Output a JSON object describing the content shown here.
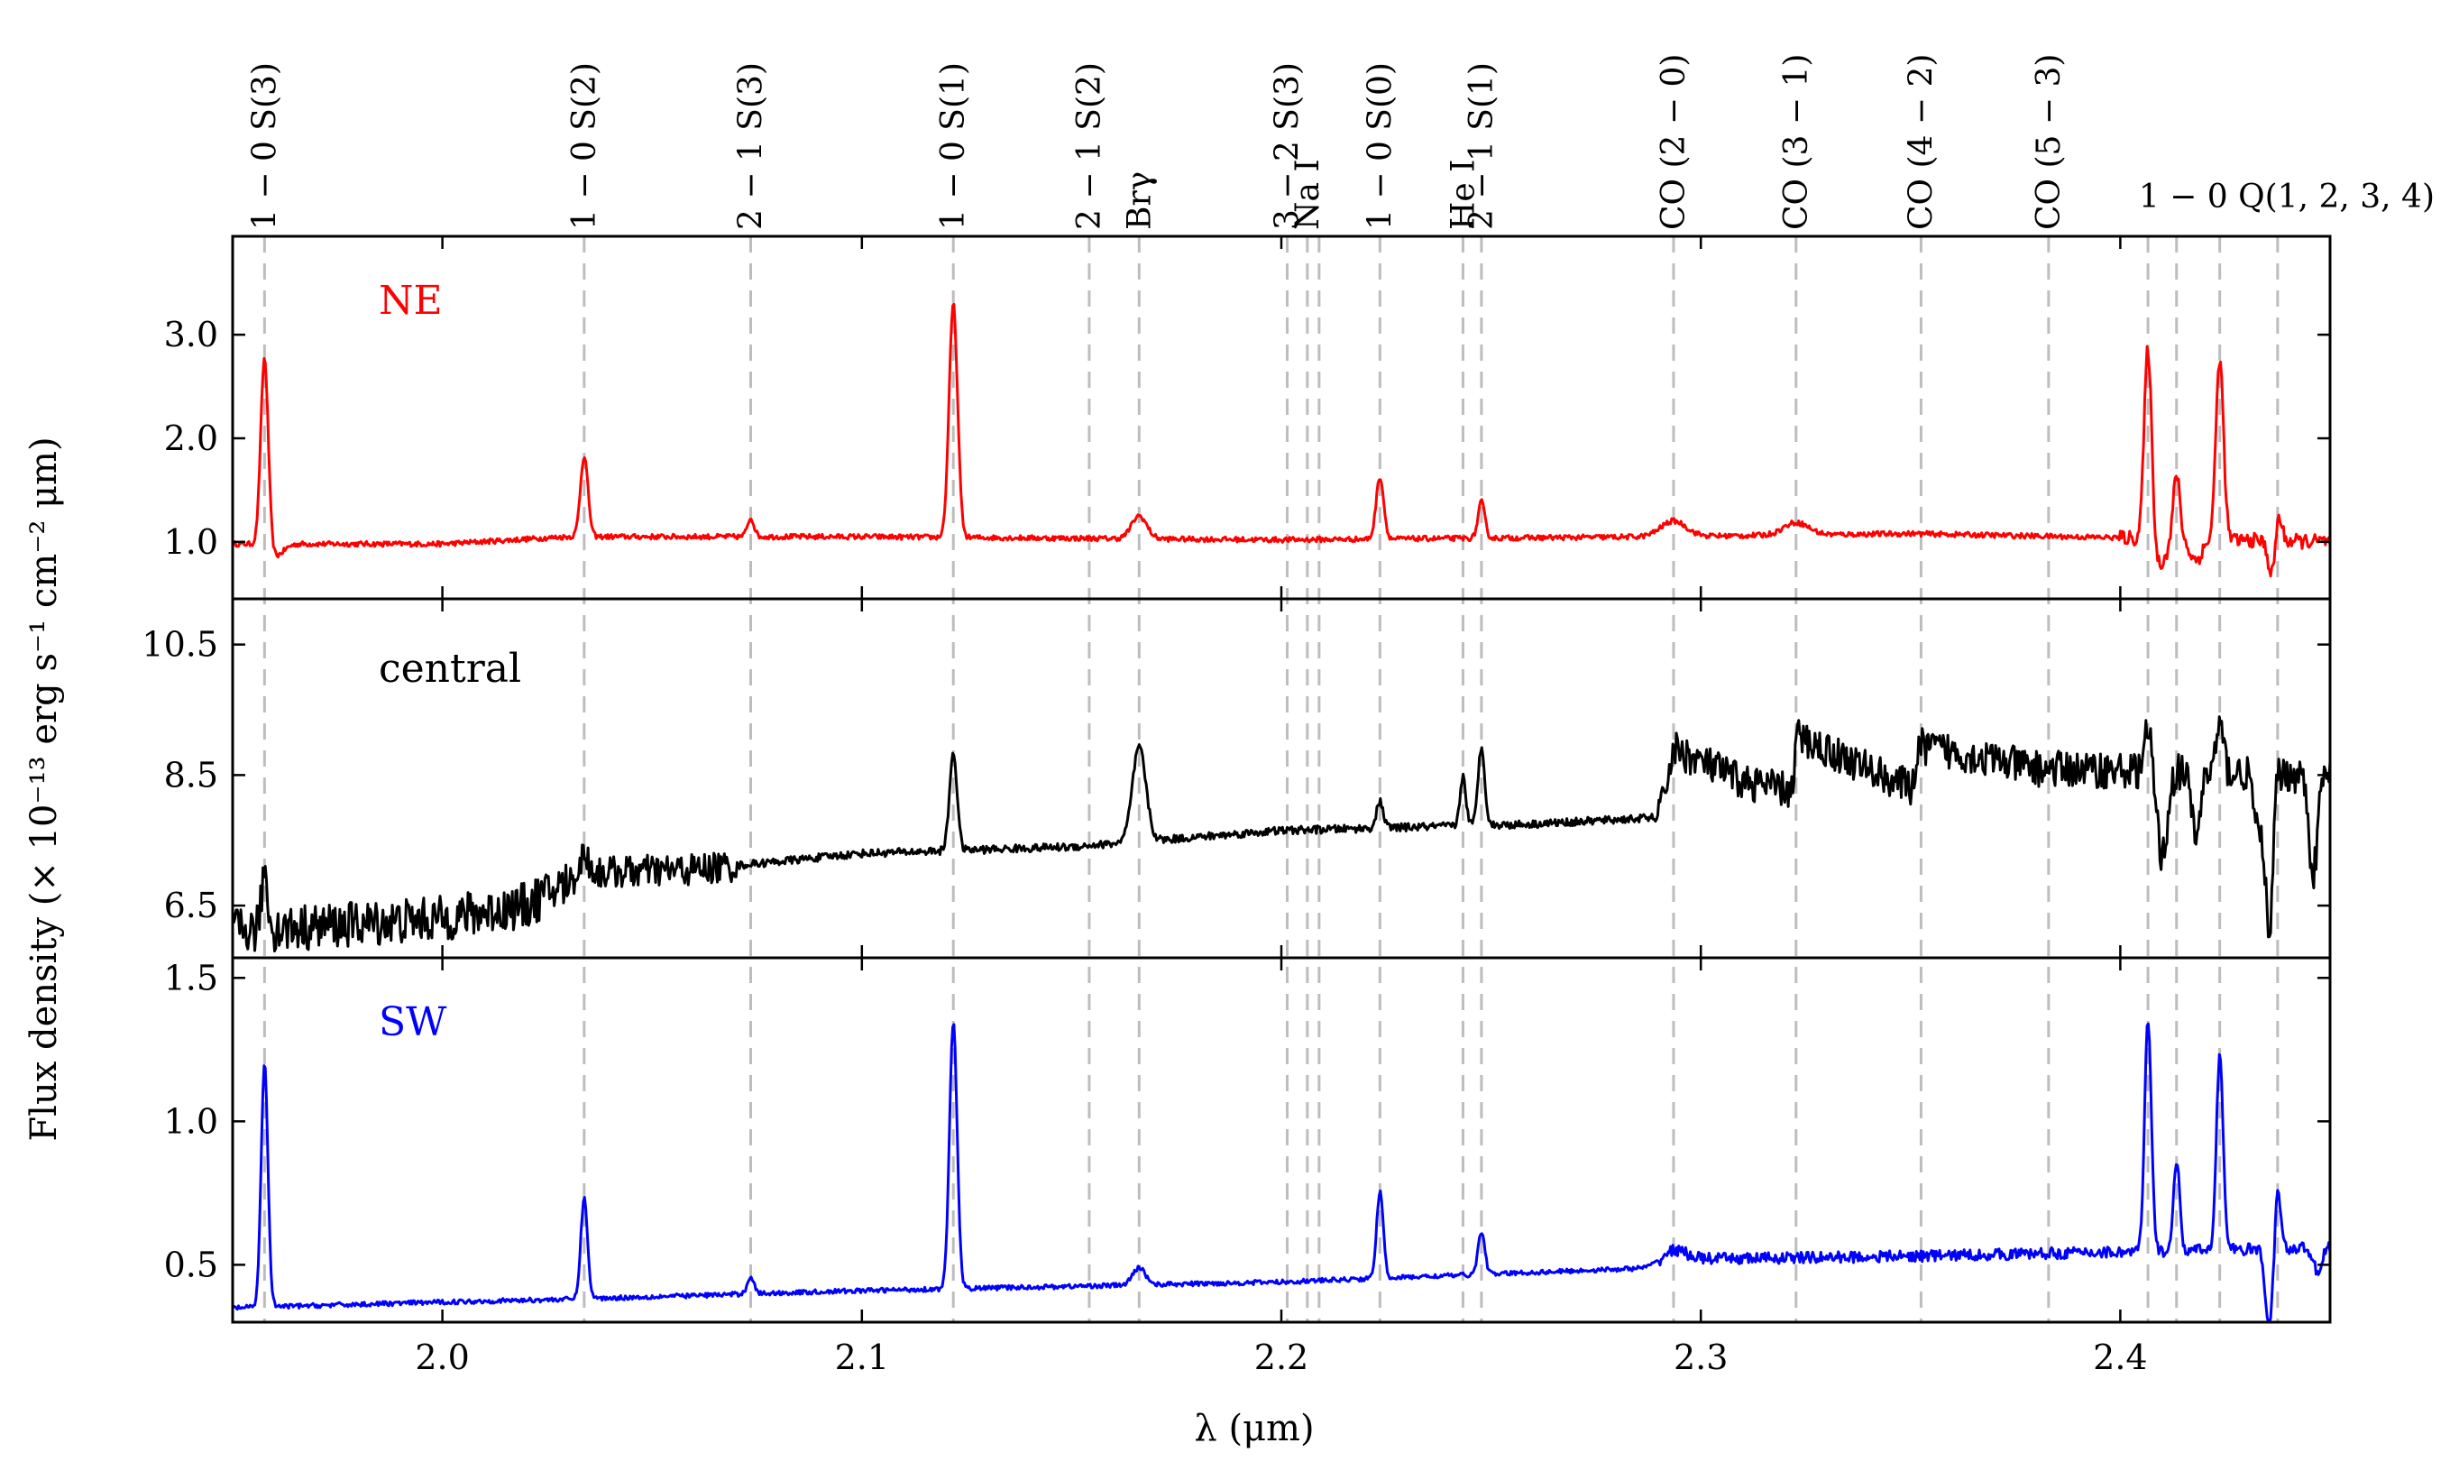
{
  "chart_data": {
    "type": "line",
    "xlabel": "λ (μm)",
    "ylabel": "Flux density (× 10⁻¹³ erg s⁻¹ cm⁻² μm)",
    "xlim": [
      1.95,
      2.45
    ],
    "x_ticks": [
      {
        "value": 2.0,
        "label": "2.0"
      },
      {
        "value": 2.1,
        "label": "2.1"
      },
      {
        "value": 2.2,
        "label": "2.2"
      },
      {
        "value": 2.3,
        "label": "2.3"
      },
      {
        "value": 2.4,
        "label": "2.4"
      }
    ],
    "lines": [
      {
        "wavelength": 1.9576,
        "label": "1 − 0 S(3)",
        "orientation": "vertical"
      },
      {
        "wavelength": 2.0338,
        "label": "1 − 0 S(2)",
        "orientation": "vertical"
      },
      {
        "wavelength": 2.0735,
        "label": "2 − 1 S(3)",
        "orientation": "vertical"
      },
      {
        "wavelength": 2.1218,
        "label": "1 − 0 S(1)",
        "orientation": "vertical"
      },
      {
        "wavelength": 2.1542,
        "label": "2 − 1 S(2)",
        "orientation": "vertical"
      },
      {
        "wavelength": 2.1661,
        "label": "Brγ",
        "orientation": "vertical"
      },
      {
        "wavelength": 2.2014,
        "label": "3 − 2 S(3)",
        "orientation": "vertical"
      },
      {
        "wavelength": 2.2062,
        "label": "Na I",
        "orientation": "vertical"
      },
      {
        "wavelength": 2.209,
        "label": "",
        "orientation": "vertical"
      },
      {
        "wavelength": 2.2235,
        "label": "1 − 0 S(0)",
        "orientation": "vertical"
      },
      {
        "wavelength": 2.2433,
        "label": "He I",
        "orientation": "vertical"
      },
      {
        "wavelength": 2.2477,
        "label": "2 − 1 S(1)",
        "orientation": "vertical"
      },
      {
        "wavelength": 2.2935,
        "label": "CO (2 − 0)",
        "orientation": "vertical"
      },
      {
        "wavelength": 2.3227,
        "label": "CO (3 − 1)",
        "orientation": "vertical"
      },
      {
        "wavelength": 2.3525,
        "label": "CO (4 − 2)",
        "orientation": "vertical"
      },
      {
        "wavelength": 2.3829,
        "label": "CO (5 − 3)",
        "orientation": "vertical"
      },
      {
        "wavelength": 2.4066,
        "label": "1 − 0 Q(1, 2, 3, 4)",
        "orientation": "horizontal"
      },
      {
        "wavelength": 2.4134,
        "label": "",
        "orientation": "vertical"
      },
      {
        "wavelength": 2.4237,
        "label": "",
        "orientation": "vertical"
      },
      {
        "wavelength": 2.4375,
        "label": "",
        "orientation": "vertical"
      }
    ],
    "panels": [
      {
        "name": "NE",
        "color": "#ff0000",
        "ylim": [
          0.45,
          3.95
        ],
        "y_ticks": [
          {
            "value": 1.0,
            "label": "1.0"
          },
          {
            "value": 2.0,
            "label": "2.0"
          },
          {
            "value": 3.0,
            "label": "3.0"
          }
        ],
        "continuum": [
          [
            1.95,
            0.98
          ],
          [
            2.0,
            0.98
          ],
          [
            2.03,
            1.05
          ],
          [
            2.1,
            1.05
          ],
          [
            2.2,
            1.02
          ],
          [
            2.29,
            1.05
          ],
          [
            2.35,
            1.08
          ],
          [
            2.45,
            1.0
          ]
        ],
        "peaks": [
          {
            "x": 1.9576,
            "height": 1.85,
            "width": 0.0009
          },
          {
            "x": 2.0338,
            "height": 0.78,
            "width": 0.0009
          },
          {
            "x": 2.0735,
            "height": 0.18,
            "width": 0.0008
          },
          {
            "x": 2.1218,
            "height": 2.25,
            "width": 0.001
          },
          {
            "x": 2.1661,
            "height": 0.22,
            "width": 0.0018
          },
          {
            "x": 2.2235,
            "height": 0.6,
            "width": 0.0009
          },
          {
            "x": 2.2477,
            "height": 0.35,
            "width": 0.0008
          },
          {
            "x": 2.2935,
            "height": 0.15,
            "width": 0.003
          },
          {
            "x": 2.3227,
            "height": 0.12,
            "width": 0.003
          },
          {
            "x": 2.4066,
            "height": 1.95,
            "width": 0.0009
          },
          {
            "x": 2.4134,
            "height": 0.65,
            "width": 0.0008
          },
          {
            "x": 2.4237,
            "height": 1.75,
            "width": 0.0009
          },
          {
            "x": 2.4375,
            "height": 0.45,
            "width": 0.0008
          }
        ],
        "dips": [
          {
            "x": 1.96,
            "depth": 0.12,
            "width": 0.002
          },
          {
            "x": 2.409,
            "depth": 0.25,
            "width": 0.002
          },
          {
            "x": 2.418,
            "depth": 0.2,
            "width": 0.0015
          },
          {
            "x": 2.4365,
            "depth": 0.45,
            "width": 0.001
          }
        ],
        "noise": [
          {
            "from": 1.95,
            "to": 2.45,
            "amp": 0.025
          },
          {
            "from": 2.4,
            "to": 2.45,
            "amp": 0.07
          }
        ]
      },
      {
        "name": "central",
        "color": "#000000",
        "ylim": [
          5.7,
          11.2
        ],
        "y_ticks": [
          {
            "value": 6.5,
            "label": "6.5"
          },
          {
            "value": 8.5,
            "label": "8.5"
          },
          {
            "value": 10.5,
            "label": "10.5"
          }
        ],
        "continuum": [
          [
            1.95,
            6.1
          ],
          [
            2.0,
            6.3
          ],
          [
            2.02,
            6.5
          ],
          [
            2.034,
            7.0
          ],
          [
            2.06,
            7.05
          ],
          [
            2.1,
            7.3
          ],
          [
            2.15,
            7.4
          ],
          [
            2.2,
            7.65
          ],
          [
            2.26,
            7.75
          ],
          [
            2.29,
            7.85
          ],
          [
            2.2935,
            8.9
          ],
          [
            2.31,
            8.4
          ],
          [
            2.322,
            8.25
          ],
          [
            2.3227,
            9.1
          ],
          [
            2.35,
            8.3
          ],
          [
            2.3525,
            8.95
          ],
          [
            2.38,
            8.6
          ],
          [
            2.45,
            8.5
          ]
        ],
        "peaks": [
          {
            "x": 1.9576,
            "height": 0.9,
            "width": 0.0007
          },
          {
            "x": 2.0338,
            "height": 0.3,
            "width": 0.001
          },
          {
            "x": 2.1218,
            "height": 1.5,
            "width": 0.0009
          },
          {
            "x": 2.1661,
            "height": 1.45,
            "width": 0.0016
          },
          {
            "x": 2.2235,
            "height": 0.4,
            "width": 0.0008
          },
          {
            "x": 2.2433,
            "height": 0.75,
            "width": 0.0007
          },
          {
            "x": 2.2477,
            "height": 1.2,
            "width": 0.0008
          },
          {
            "x": 2.4066,
            "height": 0.6,
            "width": 0.0009
          },
          {
            "x": 2.4237,
            "height": 0.7,
            "width": 0.0009
          }
        ],
        "dips": [
          {
            "x": 2.41,
            "depth": 1.3,
            "width": 0.0012
          },
          {
            "x": 2.418,
            "depth": 1.0,
            "width": 0.001
          },
          {
            "x": 2.433,
            "depth": 1.0,
            "width": 0.001
          },
          {
            "x": 2.4355,
            "depth": 2.6,
            "width": 0.0008
          },
          {
            "x": 2.446,
            "depth": 1.5,
            "width": 0.001
          }
        ],
        "noise": [
          {
            "from": 1.95,
            "to": 2.03,
            "amp": 0.35
          },
          {
            "from": 2.03,
            "to": 2.07,
            "amp": 0.25
          },
          {
            "from": 2.07,
            "to": 2.29,
            "amp": 0.06
          },
          {
            "from": 2.29,
            "to": 2.45,
            "amp": 0.28
          }
        ]
      },
      {
        "name": "SW",
        "color": "#0000ff",
        "ylim": [
          0.3,
          1.57
        ],
        "y_ticks": [
          {
            "value": 0.5,
            "label": "0.5"
          },
          {
            "value": 1.0,
            "label": "1.0"
          },
          {
            "value": 1.5,
            "label": "1.5"
          }
        ],
        "continuum": [
          [
            1.95,
            0.35
          ],
          [
            2.0,
            0.37
          ],
          [
            2.03,
            0.38
          ],
          [
            2.1,
            0.41
          ],
          [
            2.2,
            0.44
          ],
          [
            2.29,
            0.49
          ],
          [
            2.3,
            0.52
          ],
          [
            2.35,
            0.53
          ],
          [
            2.45,
            0.56
          ]
        ],
        "peaks": [
          {
            "x": 1.9576,
            "height": 0.85,
            "width": 0.0008
          },
          {
            "x": 2.0338,
            "height": 0.35,
            "width": 0.0008
          },
          {
            "x": 2.0735,
            "height": 0.06,
            "width": 0.0008
          },
          {
            "x": 2.1218,
            "height": 0.93,
            "width": 0.0009
          },
          {
            "x": 2.1661,
            "height": 0.06,
            "width": 0.0015
          },
          {
            "x": 2.2235,
            "height": 0.3,
            "width": 0.0008
          },
          {
            "x": 2.2477,
            "height": 0.15,
            "width": 0.0008
          },
          {
            "x": 2.2935,
            "height": 0.05,
            "width": 0.003
          },
          {
            "x": 2.4066,
            "height": 0.8,
            "width": 0.0008
          },
          {
            "x": 2.4134,
            "height": 0.32,
            "width": 0.0007
          },
          {
            "x": 2.4237,
            "height": 0.68,
            "width": 0.0008
          },
          {
            "x": 2.4375,
            "height": 0.22,
            "width": 0.0007
          }
        ],
        "dips": [
          {
            "x": 2.4355,
            "depth": 0.28,
            "width": 0.0009
          },
          {
            "x": 2.447,
            "depth": 0.08,
            "width": 0.001
          }
        ],
        "noise": [
          {
            "from": 1.95,
            "to": 2.45,
            "amp": 0.008
          },
          {
            "from": 2.29,
            "to": 2.45,
            "amp": 0.02
          }
        ]
      }
    ]
  }
}
